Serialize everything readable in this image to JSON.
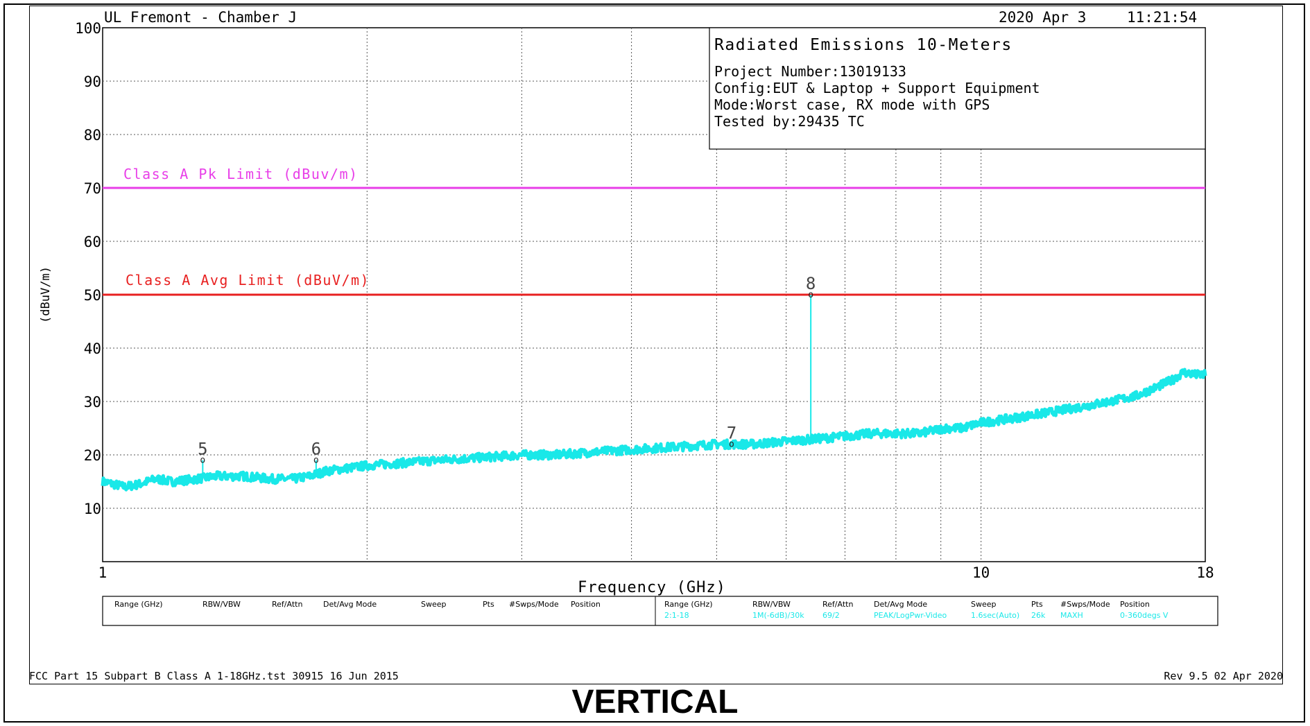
{
  "header": {
    "lab": "UL Fremont - Chamber J",
    "date": "2020 Apr 3",
    "time": "11:21:54"
  },
  "info_box": {
    "title": "Radiated Emissions 10-Meters",
    "project": "Project Number:13019133",
    "config": "Config:EUT & Laptop + Support Equipment",
    "mode": "Mode:Worst case, RX mode with GPS",
    "tested_by": "Tested by:29435 TC"
  },
  "limits": {
    "pk_label": "Class A Pk Limit (dBuv/m)",
    "avg_label": "Class A Avg Limit (dBuV/m)"
  },
  "settings_table": {
    "left_headers": [
      "Range (GHz)",
      "RBW/VBW",
      "Ref/Attn",
      "Det/Avg Mode",
      "Sweep",
      "Pts",
      "#Swps/Mode",
      "Position"
    ],
    "right_headers": [
      "Range (GHz)",
      "RBW/VBW",
      "Ref/Attn",
      "Det/Avg Mode",
      "Sweep",
      "Pts",
      "#Swps/Mode",
      "Position"
    ],
    "right_values": [
      "2:1-18",
      "1M(-6dB)/30k",
      "69/2",
      "PEAK/LogPwr-Video",
      "1.6sec(Auto)",
      "26k",
      "MAXH",
      "0-360degs V"
    ]
  },
  "footer": {
    "left": "FCC Part 15 Subpart B Class A 1-18GHz.tst 30915 16 Jun 2015",
    "right": "Rev 9.5 02 Apr 2020",
    "caption": "VERTICAL"
  },
  "colors": {
    "trace": "#19e8e8",
    "pk_limit": "#e83ee8",
    "avg_limit": "#e82020",
    "grid": "#555555"
  },
  "chart_data": {
    "type": "line",
    "title": "",
    "xlabel": "Frequency (GHz)",
    "ylabel": "(dBuV/m)",
    "xscale": "log",
    "xlim": [
      1,
      18
    ],
    "ylim": [
      0,
      100
    ],
    "x_tick_labels": [
      "1",
      "10",
      "18"
    ],
    "y_tick_labels": [
      "10",
      "20",
      "30",
      "40",
      "50",
      "60",
      "70",
      "80",
      "90",
      "100"
    ],
    "grid": true,
    "limit_lines": [
      {
        "name": "Class A Pk Limit (dBuv/m)",
        "value": 70,
        "color": "#e83ee8"
      },
      {
        "name": "Class A Avg Limit (dBuV/m)",
        "value": 50,
        "color": "#e82020"
      }
    ],
    "series": [
      {
        "x": [
          1.0,
          1.03,
          1.06,
          1.1,
          1.15,
          1.2,
          1.28,
          1.35,
          1.45,
          1.55,
          1.65,
          1.72,
          1.8,
          1.9,
          2.0,
          2.2,
          2.4,
          2.7,
          3.0,
          3.3,
          3.6,
          4.0,
          4.5,
          5.0,
          5.5,
          5.95,
          6.5,
          7.0,
          7.5,
          8.0,
          8.5,
          8.8,
          9.1,
          9.5,
          10.0,
          11.0,
          12.0,
          13.0,
          14.0,
          15.0,
          16.0,
          16.5,
          17.0,
          17.5,
          18.0
        ],
        "y": [
          15,
          14.5,
          14,
          14.5,
          15.5,
          15,
          15.5,
          16,
          16,
          15.5,
          15.5,
          16,
          17,
          17.5,
          18,
          18.5,
          19,
          19.5,
          20,
          20,
          20.5,
          21,
          21.5,
          22,
          22,
          22.5,
          23,
          23.5,
          24,
          24,
          24,
          24.5,
          25,
          25,
          26,
          27,
          28,
          29,
          30,
          31,
          33,
          34,
          35.5,
          35,
          35
        ]
      }
    ],
    "markers": [
      {
        "label": "5",
        "x": 1.3,
        "y": 19
      },
      {
        "label": "6",
        "x": 1.75,
        "y": 19
      },
      {
        "label": "7",
        "x": 5.2,
        "y": 22
      },
      {
        "label": "8",
        "x": 6.4,
        "y": 50
      }
    ]
  }
}
